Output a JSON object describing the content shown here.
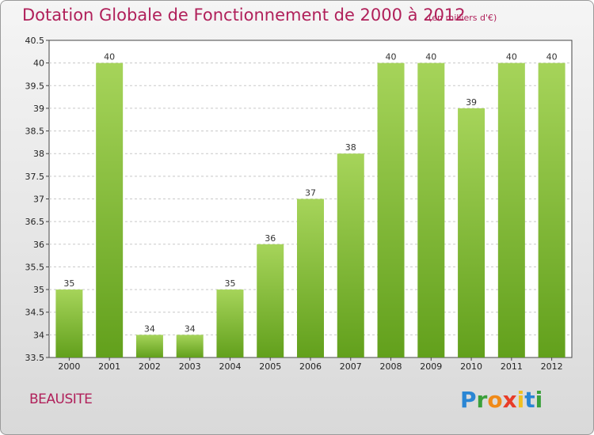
{
  "title": "Dotation Globale de Fonctionnement de 2000 à 2012",
  "unit_note": "(en milliers d'€)",
  "commune": "BEAUSITE",
  "logo": {
    "text": "Proxiti",
    "letters": [
      {
        "ch": "P",
        "color": "#2a86d4"
      },
      {
        "ch": "r",
        "color": "#3aa03a"
      },
      {
        "ch": "o",
        "color": "#f08a18"
      },
      {
        "ch": "x",
        "color": "#e83c28"
      },
      {
        "ch": "i",
        "color": "#f0c020"
      },
      {
        "ch": "t",
        "color": "#2a86d4"
      },
      {
        "ch": "i",
        "color": "#3aa03a"
      }
    ]
  },
  "colors": {
    "bar_top": "#a6d45a",
    "bar_bottom": "#62a01c",
    "title": "#b0205a"
  },
  "chart_data": {
    "type": "bar",
    "title": "Dotation Globale de Fonctionnement de 2000 à 2012",
    "xlabel": "",
    "ylabel": "",
    "categories": [
      "2000",
      "2001",
      "2002",
      "2003",
      "2004",
      "2005",
      "2006",
      "2007",
      "2008",
      "2009",
      "2010",
      "2011",
      "2012"
    ],
    "values": [
      35,
      40,
      34,
      34,
      35,
      36,
      37,
      38,
      40,
      40,
      39,
      40,
      40
    ],
    "ylim": [
      33.5,
      40.5
    ],
    "yticks": [
      "33.5",
      "34",
      "34.5",
      "35",
      "35.5",
      "36",
      "36.5",
      "37",
      "37.5",
      "38",
      "38.5",
      "39",
      "39.5",
      "40",
      "40.5"
    ],
    "grid": "horizontal dashed"
  }
}
